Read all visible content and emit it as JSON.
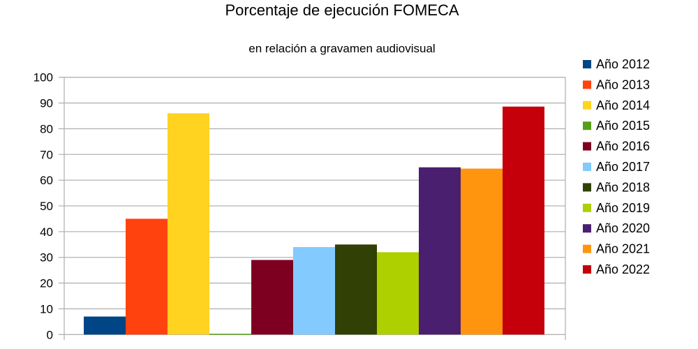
{
  "chart_data": {
    "type": "bar",
    "title": "Porcentaje de ejecución FOMECA",
    "subtitle": "en relación a gravamen audiovisual",
    "xlabel": "",
    "ylabel": "",
    "ylim": [
      0,
      100
    ],
    "yticks": [
      0,
      10,
      20,
      30,
      40,
      50,
      60,
      70,
      80,
      90,
      100
    ],
    "grid": true,
    "legend_position": "right",
    "series": [
      {
        "name": "Año 2012",
        "value": 7,
        "color": "#004586"
      },
      {
        "name": "Año 2013",
        "value": 45,
        "color": "#ff420e"
      },
      {
        "name": "Año 2014",
        "value": 86,
        "color": "#ffd320"
      },
      {
        "name": "Año 2015",
        "value": 0.3,
        "color": "#579d1c"
      },
      {
        "name": "Año 2016",
        "value": 29,
        "color": "#7e0021"
      },
      {
        "name": "Año 2017",
        "value": 34,
        "color": "#83caff"
      },
      {
        "name": "Año 2018",
        "value": 35,
        "color": "#314004"
      },
      {
        "name": "Año 2019",
        "value": 32,
        "color": "#aecf00"
      },
      {
        "name": "Año 2020",
        "value": 65,
        "color": "#4b1f6f"
      },
      {
        "name": "Año 2021",
        "value": 64.5,
        "color": "#ff950e"
      },
      {
        "name": "Año 2022",
        "value": 88.6,
        "color": "#c5000b"
      }
    ]
  }
}
